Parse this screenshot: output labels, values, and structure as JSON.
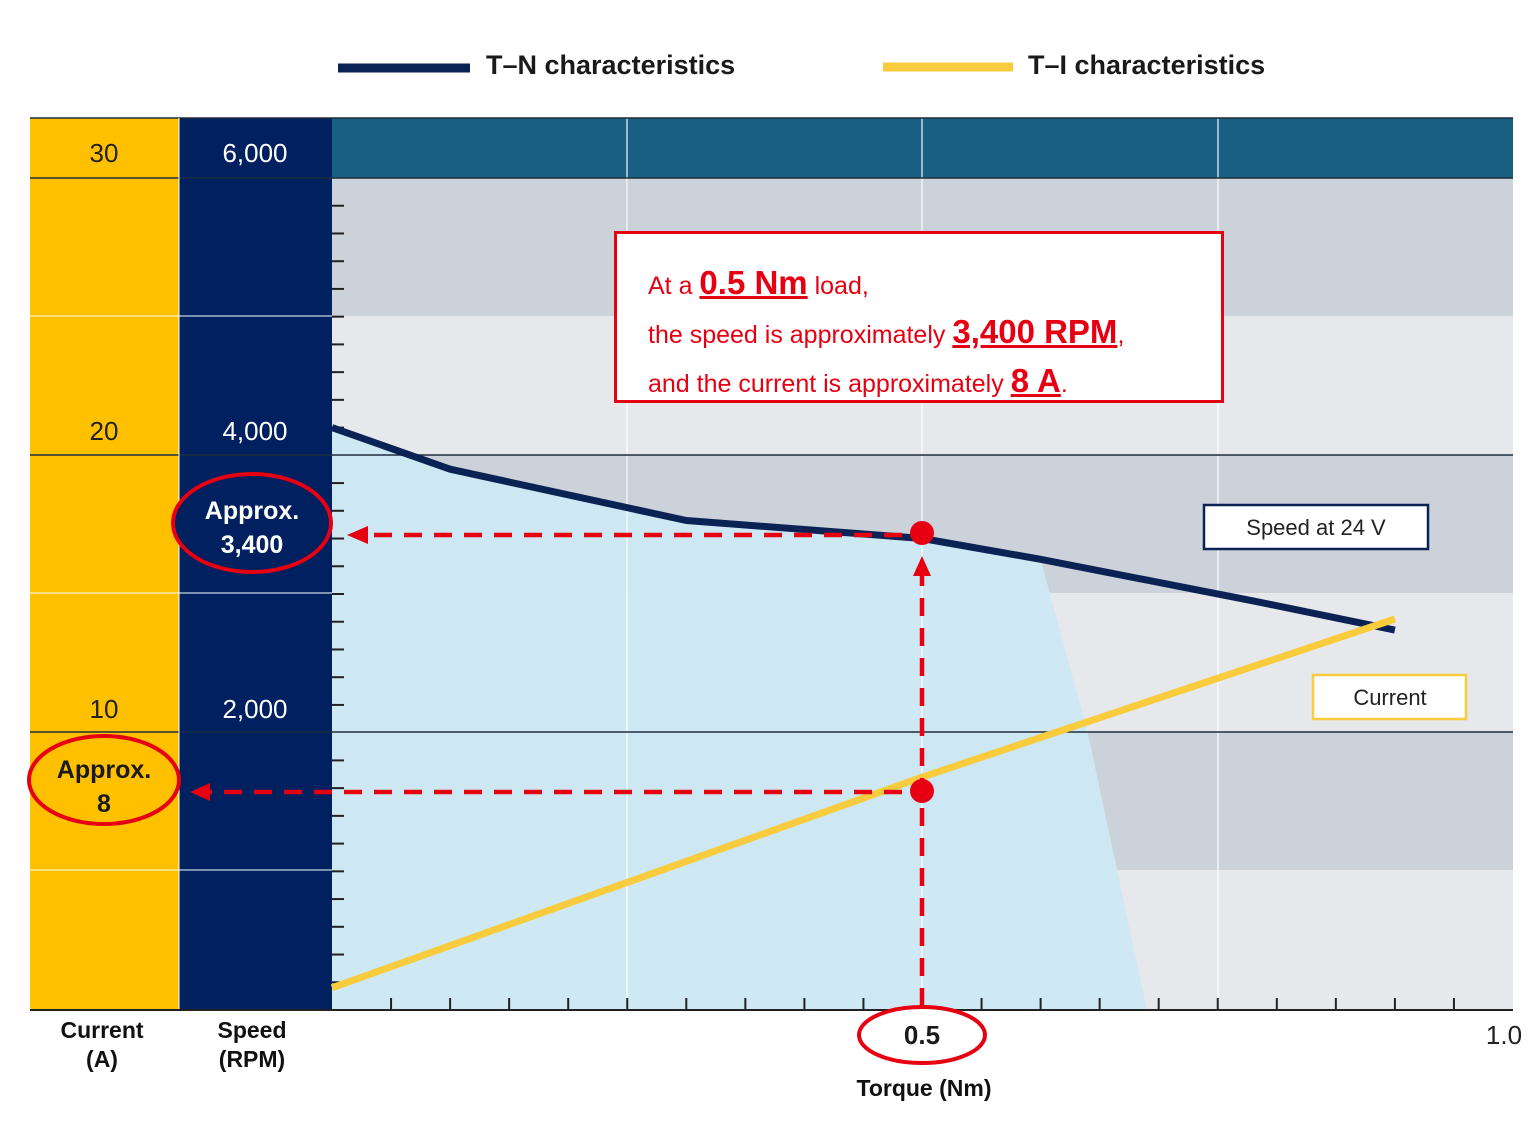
{
  "chart_data": {
    "type": "line",
    "legend": {
      "placement": "top",
      "entries": [
        {
          "label": "T–N characteristics",
          "color": "#0b2354"
        },
        {
          "label": "T–I characteristics",
          "color": "#f8cc3c"
        }
      ]
    },
    "x_axis": {
      "label": "Torque (Nm)",
      "range": [
        0,
        1.0
      ],
      "tick_labels": [
        {
          "value": 0.5,
          "label": "0.5"
        },
        {
          "value": 1.0,
          "label": "1.0"
        }
      ],
      "minor_step": 0.05
    },
    "speed_axis": {
      "label_line1": "Speed",
      "label_line2": "(RPM)",
      "range": [
        0,
        6000
      ],
      "tick_labels": [
        {
          "value": 2000,
          "label": "2,000"
        },
        {
          "value": 4000,
          "label": "4,000"
        },
        {
          "value": 6000,
          "label": "6,000"
        }
      ],
      "background": "#002060"
    },
    "current_axis": {
      "label_line1": "Current",
      "label_line2": "(A)",
      "range": [
        0,
        30
      ],
      "tick_labels": [
        {
          "value": 10,
          "label": "10"
        },
        {
          "value": 20,
          "label": "20"
        },
        {
          "value": 30,
          "label": "30"
        }
      ],
      "background": "#ffc000"
    },
    "series": [
      {
        "name": "Speed at 24 V",
        "axis": "speed",
        "color": "#0b2354",
        "points": [
          [
            0,
            4200
          ],
          [
            0.1,
            3900
          ],
          [
            0.3,
            3530
          ],
          [
            0.5,
            3400
          ],
          [
            0.6,
            3250
          ],
          [
            0.78,
            2950
          ],
          [
            0.9,
            2740
          ]
        ]
      },
      {
        "name": "Current",
        "axis": "current",
        "color": "#f8cc3c",
        "points": [
          [
            0,
            0.8
          ],
          [
            0.5,
            8.4
          ],
          [
            0.9,
            14.1
          ]
        ]
      }
    ],
    "operating_region": {
      "color": "#cce8f4",
      "points": [
        [
          0,
          4200
        ],
        [
          0.1,
          3900
        ],
        [
          0.3,
          3530
        ],
        [
          0.5,
          3400
        ],
        [
          0.6,
          3250
        ],
        [
          0.64,
          2000
        ],
        [
          0.69,
          0
        ],
        [
          0,
          0
        ]
      ]
    },
    "grid": true,
    "annotation_point": {
      "torque": 0.5,
      "speed": 3400,
      "current": 8,
      "speed_callout": {
        "line1": "Approx.",
        "line2": "3,400"
      },
      "current_callout": {
        "line1": "Approx.",
        "line2": "8"
      },
      "torque_callout": "0.5"
    }
  },
  "note": {
    "line1_pre": "At a ",
    "line1_big": "0.5 Nm",
    "line1_post": " load,",
    "line2_pre": "the speed is approximately ",
    "line2_big": "3,400 RPM",
    "line2_post": ",",
    "line3_pre": "and the current is approximately ",
    "line3_big": "8 A",
    "line3_post": "."
  },
  "colors": {
    "highlight_red": "#e60012",
    "header_band": "#185f82",
    "band_dark": "#cbd2da",
    "band_light": "#e6e8ec"
  }
}
